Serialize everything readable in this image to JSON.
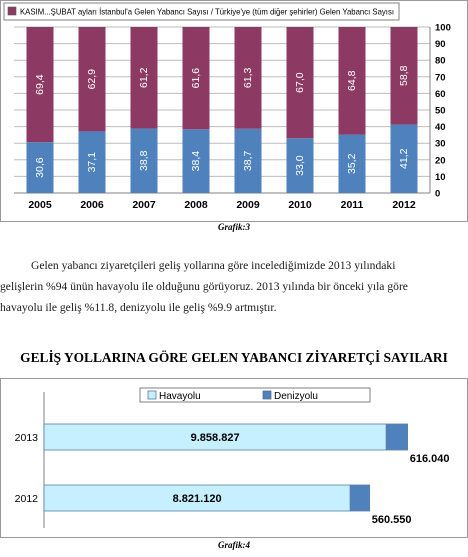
{
  "chart_data": [
    {
      "type": "bar",
      "stacked": true,
      "legend": "KASIM...ŞUBAT ayları İstanbul'a Gelen Yabancı Sayısı / Türkiye'ye (tüm diğer şehirler) Gelen Yabancı Sayısı",
      "categories": [
        "2005",
        "2006",
        "2007",
        "2008",
        "2009",
        "2010",
        "2011",
        "2012"
      ],
      "series": [
        {
          "values": [
            30.6,
            37.1,
            38.8,
            38.4,
            38.7,
            33.0,
            35.2,
            41.2
          ],
          "labels": [
            "30,6",
            "37,1",
            "38,8",
            "38,4",
            "38,7",
            "33,0",
            "35,2",
            "41,2"
          ],
          "color": "#4f81bd"
        },
        {
          "values": [
            69.4,
            62.9,
            61.2,
            61.6,
            61.3,
            67.0,
            64.8,
            58.8
          ],
          "labels": [
            "69,4",
            "62,9",
            "61,2",
            "61,6",
            "61,3",
            "67,0",
            "64,8",
            "58,8"
          ],
          "color": "#8c3a63"
        }
      ],
      "y_ticks": [
        "0",
        "10",
        "20",
        "30",
        "40",
        "50",
        "60",
        "70",
        "80",
        "90",
        "100"
      ],
      "ylim": [
        0,
        100
      ],
      "grid": true,
      "legend_position": "top"
    },
    {
      "type": "bar",
      "orientation": "horizontal",
      "stacked": true,
      "title": "GELİŞ YOLLARINA GÖRE GELEN YABANCI ZİYARETÇİ SAYILARI",
      "categories": [
        "2013",
        "2012"
      ],
      "series": [
        {
          "name": "Havayolu",
          "values": [
            9858827,
            8821120
          ],
          "labels": [
            "9.858.827",
            "8.821.120"
          ],
          "color": "#c6efff"
        },
        {
          "name": "Denizyolu",
          "values": [
            616040,
            560550
          ],
          "labels": [
            "616.040",
            "560.550"
          ],
          "color": "#4f81bd"
        }
      ],
      "legend_position": "top"
    }
  ],
  "captions": {
    "chart1": "Grafik:3",
    "chart2": "Grafik:4"
  },
  "paragraph": {
    "line1": "Gelen yabancı ziyaretçileri geliş yollarına göre incelediğimizde 2013 yılındaki",
    "line2": "gelişlerin %94 ünün havayolu ile olduğunu görüyoruz. 2013 yılında bir önceki yıla göre",
    "line3": "havayolu ile geliş %11.8, denizyolu ile geliş %9.9 artmıştır."
  }
}
